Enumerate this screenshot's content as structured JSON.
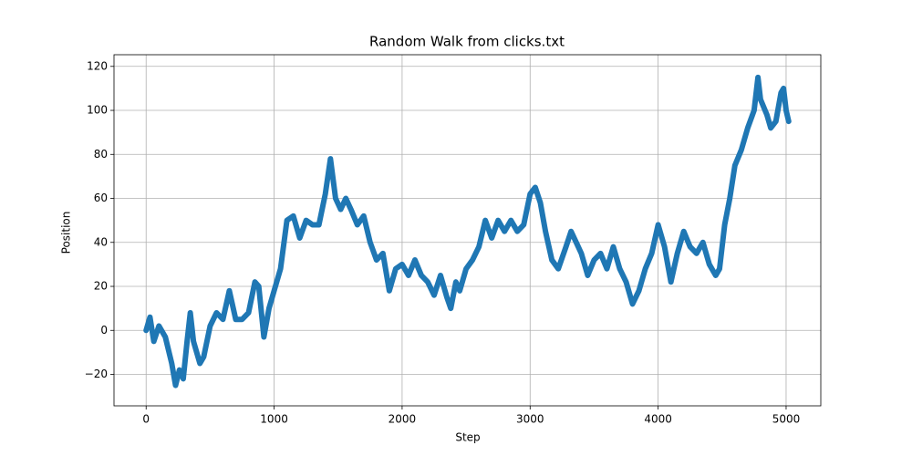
{
  "chart_data": {
    "type": "line",
    "title": "Random Walk from clicks.txt",
    "x_label": "Step",
    "y_label": "Position",
    "color": "#1f77b4",
    "grid": true,
    "xlim": [
      -251,
      5271
    ],
    "ylim": [
      -34.3,
      125.3
    ],
    "xticks": [
      0,
      1000,
      2000,
      3000,
      4000,
      5000
    ],
    "yticks": [
      {
        "value": -20,
        "label": "−20"
      },
      0,
      20,
      40,
      60,
      80,
      100,
      120
    ],
    "x": [
      0,
      30,
      60,
      100,
      150,
      200,
      230,
      260,
      290,
      320,
      345,
      370,
      420,
      450,
      500,
      550,
      600,
      650,
      700,
      750,
      800,
      850,
      880,
      920,
      960,
      1000,
      1050,
      1100,
      1150,
      1200,
      1250,
      1300,
      1350,
      1400,
      1440,
      1480,
      1520,
      1560,
      1600,
      1650,
      1700,
      1750,
      1800,
      1850,
      1900,
      1950,
      2000,
      2050,
      2100,
      2150,
      2200,
      2250,
      2300,
      2350,
      2380,
      2420,
      2450,
      2500,
      2550,
      2600,
      2650,
      2700,
      2750,
      2800,
      2850,
      2900,
      2950,
      3000,
      3040,
      3080,
      3120,
      3170,
      3220,
      3280,
      3320,
      3360,
      3400,
      3450,
      3500,
      3550,
      3600,
      3650,
      3700,
      3750,
      3800,
      3850,
      3900,
      3950,
      4000,
      4050,
      4100,
      4150,
      4200,
      4250,
      4300,
      4350,
      4400,
      4450,
      4480,
      4520,
      4560,
      4600,
      4650,
      4700,
      4750,
      4780,
      4800,
      4850,
      4880,
      4920,
      4960,
      4980,
      5000,
      5020
    ],
    "values": [
      0,
      6,
      -5,
      2,
      -3,
      -15,
      -25,
      -18,
      -22,
      -5,
      8,
      -5,
      -15,
      -12,
      2,
      8,
      5,
      18,
      5,
      5,
      8,
      22,
      20,
      -3,
      10,
      18,
      28,
      50,
      52,
      42,
      50,
      48,
      48,
      62,
      78,
      60,
      55,
      60,
      55,
      48,
      52,
      40,
      32,
      35,
      18,
      28,
      30,
      25,
      32,
      25,
      22,
      16,
      25,
      15,
      10,
      22,
      18,
      28,
      32,
      38,
      50,
      42,
      50,
      45,
      50,
      45,
      48,
      62,
      65,
      58,
      45,
      32,
      28,
      38,
      45,
      40,
      35,
      25,
      32,
      35,
      28,
      38,
      28,
      22,
      12,
      18,
      28,
      35,
      48,
      38,
      22,
      35,
      45,
      38,
      35,
      40,
      30,
      25,
      28,
      48,
      60,
      75,
      82,
      92,
      100,
      115,
      105,
      98,
      92,
      95,
      108,
      110,
      100,
      95
    ]
  }
}
